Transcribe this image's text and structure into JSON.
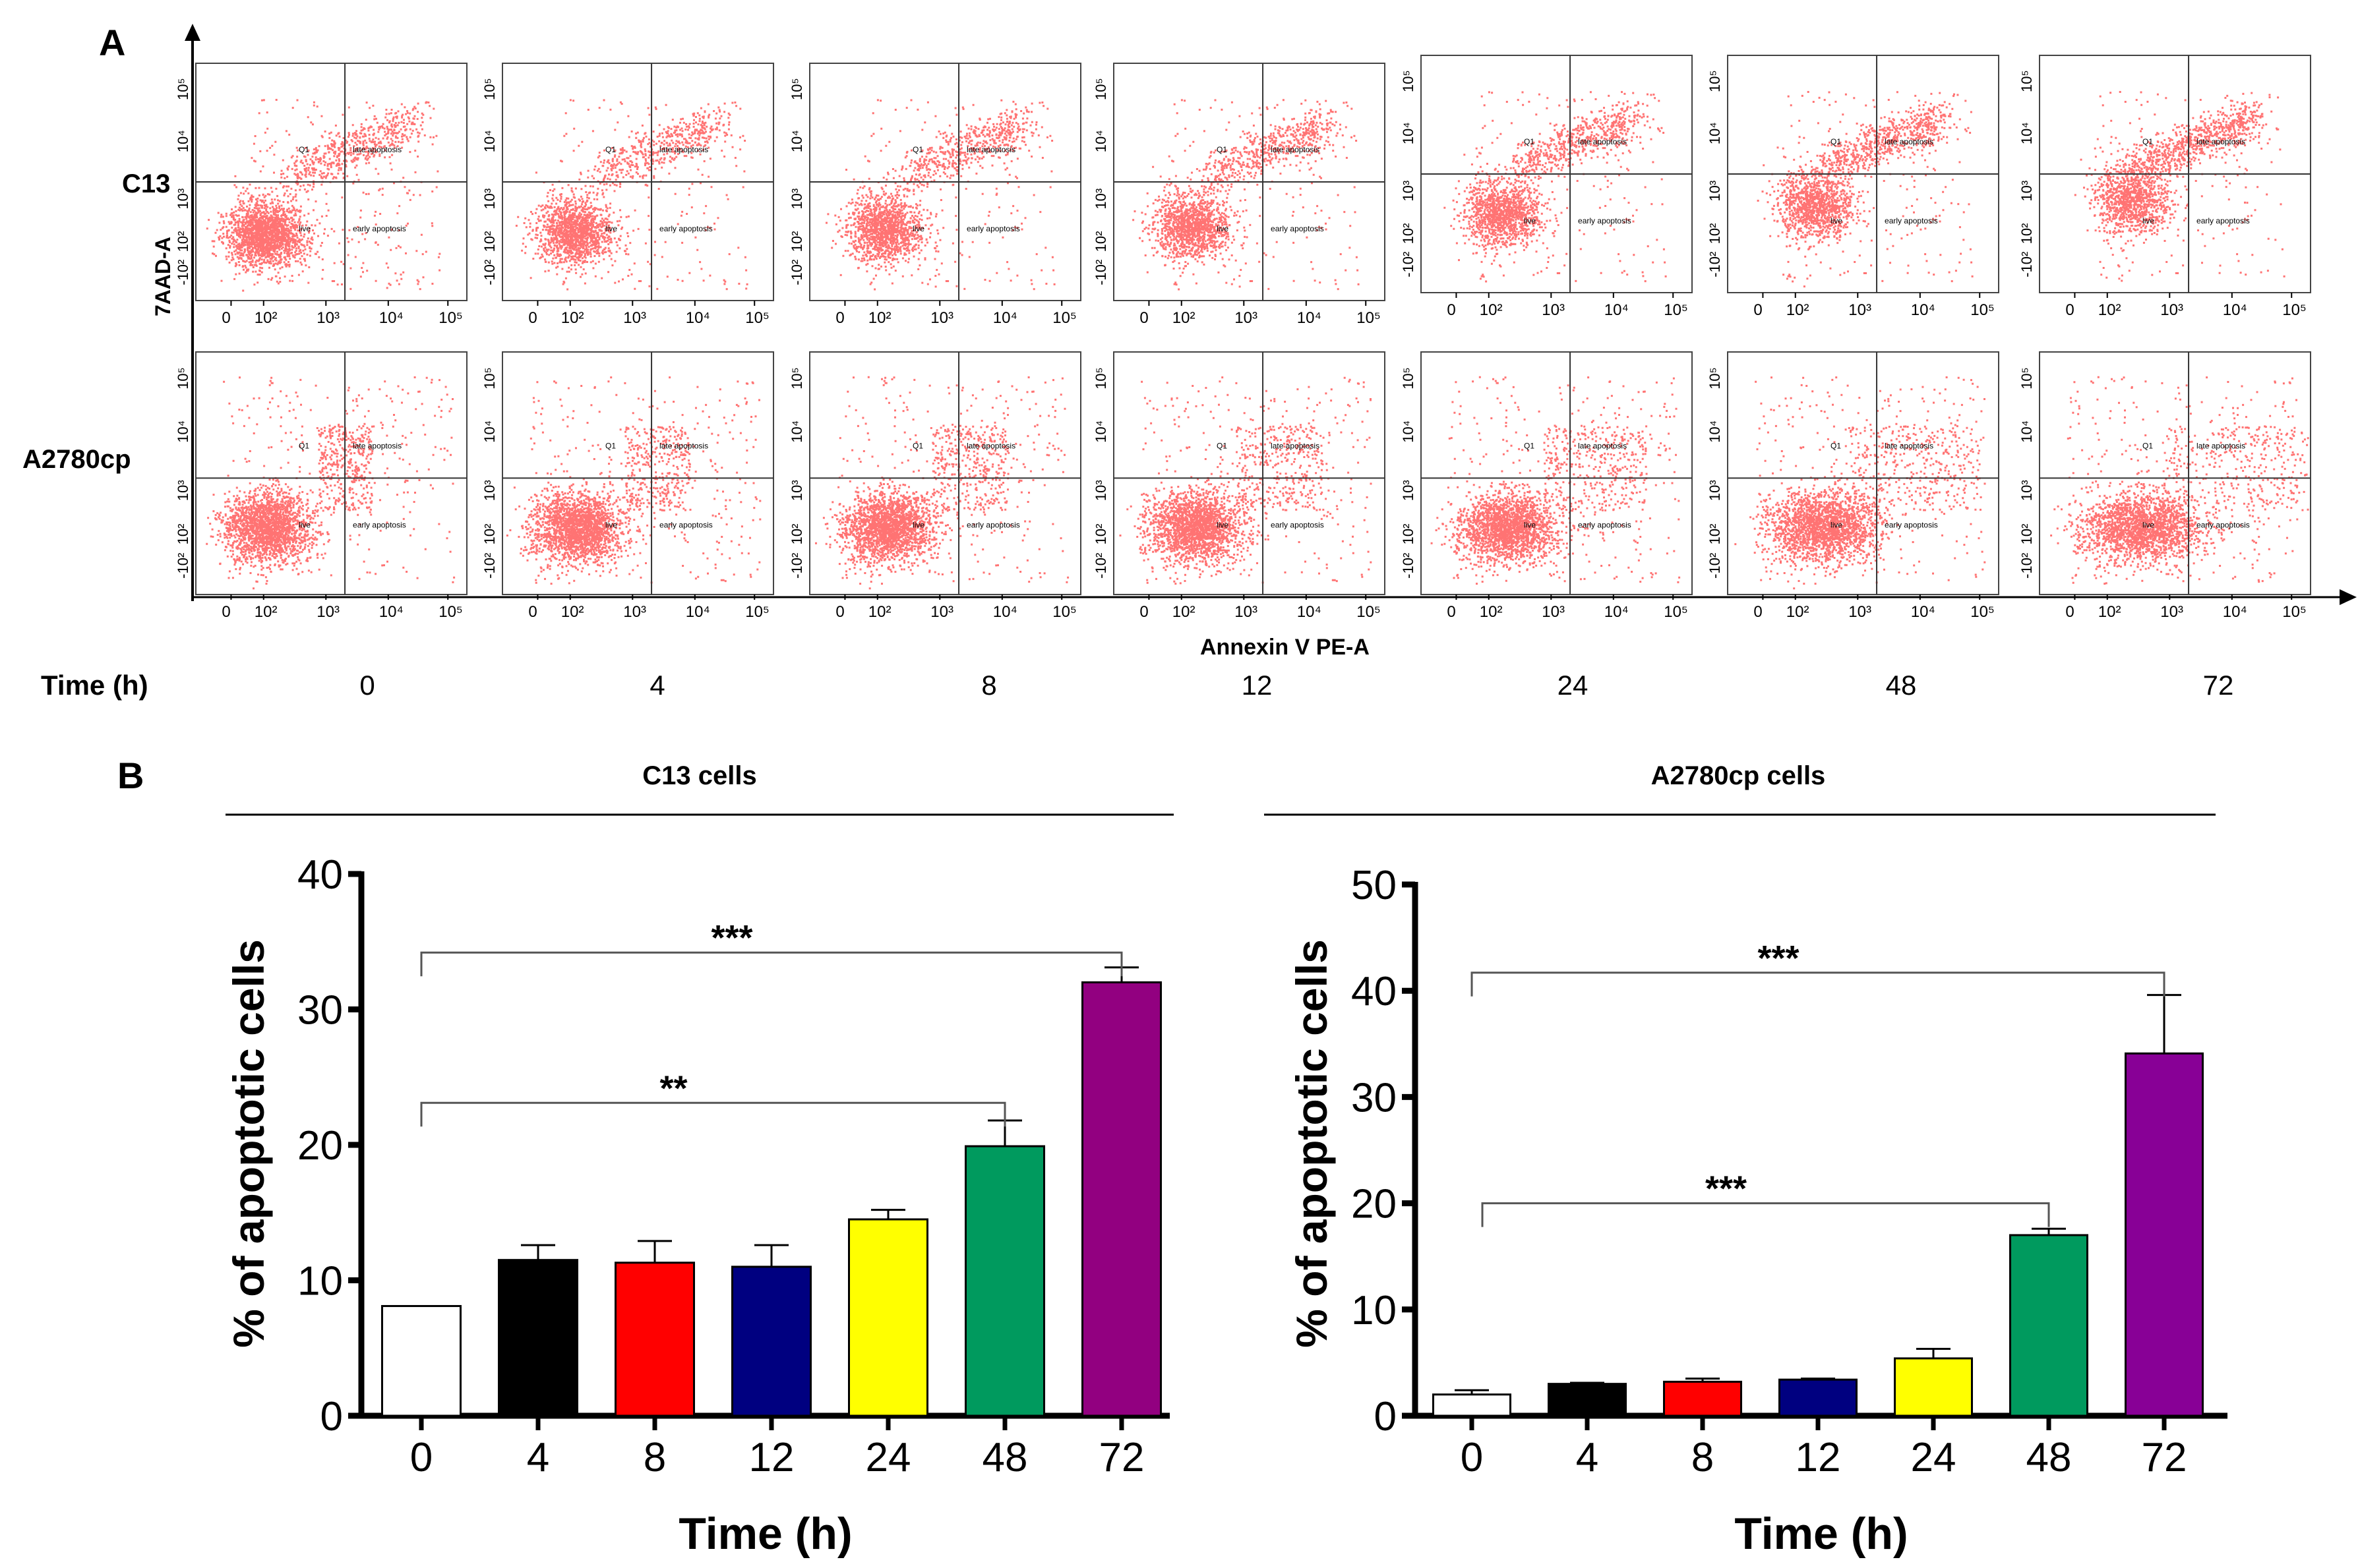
{
  "panel_a": {
    "label": "A",
    "rows": [
      "C13",
      "A2780cp"
    ],
    "y_axis_label": "7AAD-A",
    "x_axis_label": "Annexin V PE-A",
    "time_label": "Time (h)",
    "times": [
      "0",
      "4",
      "8",
      "12",
      "24",
      "48",
      "72"
    ],
    "x_ticks": [
      "0",
      "10²",
      "10³",
      "10⁴",
      "10⁵"
    ],
    "y_ticks": [
      "10⁵",
      "10⁴",
      "10³",
      "10²",
      "-10²"
    ],
    "quadrants": {
      "q1": "Q1",
      "late": "late apoptosis",
      "early": "early apoptosis",
      "live": "live"
    },
    "dot_color": "#ff0000"
  },
  "panel_b": {
    "label": "B"
  },
  "chart_data": [
    {
      "type": "bar",
      "title": "C13 cells",
      "xlabel": "Time (h)",
      "ylabel": "% of apoptotic cells",
      "categories": [
        "0",
        "4",
        "8",
        "12",
        "24",
        "48",
        "72"
      ],
      "values": [
        8.1,
        11.5,
        11.3,
        11.0,
        14.5,
        19.9,
        32.0
      ],
      "error_upper": [
        8.1,
        12.6,
        12.9,
        12.6,
        15.2,
        21.8,
        33.1
      ],
      "colors": [
        "#ffffff",
        "#000000",
        "#ff0000",
        "#000080",
        "#ffff00",
        "#009a5e",
        "#920080"
      ],
      "ylim": [
        0,
        40
      ],
      "yticks": [
        "0",
        "10",
        "20",
        "30",
        "40"
      ],
      "significance": [
        {
          "from": "0",
          "to": "48",
          "label": "**",
          "y": 23.1
        },
        {
          "from": "0",
          "to": "72",
          "label": "***",
          "y": 34.2
        }
      ]
    },
    {
      "type": "bar",
      "title": "A2780cp cells",
      "xlabel": "Time (h)",
      "ylabel": "% of apoptotic cells",
      "categories": [
        "0",
        "4",
        "8",
        "12",
        "24",
        "48",
        "72"
      ],
      "values": [
        2.0,
        3.0,
        3.2,
        3.4,
        5.4,
        17.0,
        34.1
      ],
      "error_upper": [
        2.4,
        3.1,
        3.5,
        3.5,
        6.3,
        17.6,
        39.6
      ],
      "colors": [
        "#ffffff",
        "#000000",
        "#ff0000",
        "#000080",
        "#ffff00",
        "#009a5e",
        "#880096"
      ],
      "ylim": [
        0,
        50
      ],
      "yticks": [
        "0",
        "10",
        "20",
        "30",
        "40",
        "50"
      ],
      "significance": [
        {
          "from": "0",
          "to": "48",
          "label": "***",
          "y": 20.0
        },
        {
          "from": "0",
          "to": "72",
          "label": "***",
          "y": 41.7
        }
      ]
    }
  ]
}
